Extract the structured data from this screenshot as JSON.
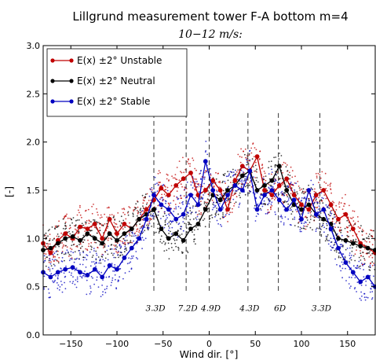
{
  "chart_data": {
    "type": "line",
    "title": "Lillgrund measurement tower F-A bottom m=4",
    "subtitle": "10−12 m/s:",
    "xlabel": "Wind dir. [°]",
    "ylabel": "[-]",
    "xlim": [
      -180,
      180
    ],
    "ylim": [
      0,
      3
    ],
    "xticks": [
      -150,
      -100,
      -50,
      0,
      50,
      100,
      150
    ],
    "yticks": [
      0.0,
      0.5,
      1.0,
      1.5,
      2.0,
      2.5,
      3.0
    ],
    "xtick_labels": [
      "−150",
      "−100",
      "−50",
      "0",
      "50",
      "100",
      "150"
    ],
    "ytick_labels": [
      "0.0",
      "0.5",
      "1.0",
      "1.5",
      "2.0",
      "2.5",
      "3.0"
    ],
    "grid": false,
    "legend_position": "top-left",
    "legend_title_prefix": "E(x) ±2°",
    "series": [
      {
        "name": "E(x) ±2° Unstable",
        "color": "#c00000",
        "x": [
          -180,
          -172,
          -164,
          -156,
          -148,
          -140,
          -132,
          -124,
          -116,
          -108,
          -100,
          -92,
          -84,
          -76,
          -68,
          -60,
          -52,
          -44,
          -36,
          -28,
          -20,
          -12,
          -4,
          4,
          12,
          20,
          28,
          36,
          44,
          52,
          60,
          68,
          76,
          84,
          92,
          100,
          108,
          116,
          124,
          132,
          140,
          148,
          156,
          164,
          172,
          180
        ],
        "y": [
          0.95,
          0.85,
          0.98,
          1.05,
          1.0,
          1.12,
          1.1,
          1.15,
          1.0,
          1.2,
          1.05,
          1.15,
          1.1,
          1.2,
          1.3,
          1.4,
          1.52,
          1.45,
          1.55,
          1.62,
          1.68,
          1.45,
          1.5,
          1.6,
          1.5,
          1.3,
          1.6,
          1.75,
          1.7,
          1.85,
          1.5,
          1.45,
          1.55,
          1.62,
          1.45,
          1.35,
          1.3,
          1.45,
          1.5,
          1.35,
          1.2,
          1.25,
          1.1,
          0.95,
          0.9,
          0.85
        ]
      },
      {
        "name": "E(x) ±2° Neutral",
        "color": "#000000",
        "x": [
          -180,
          -172,
          -164,
          -156,
          -148,
          -140,
          -132,
          -124,
          -116,
          -108,
          -100,
          -92,
          -84,
          -76,
          -68,
          -60,
          -52,
          -44,
          -36,
          -28,
          -20,
          -12,
          -4,
          4,
          12,
          20,
          28,
          36,
          44,
          52,
          60,
          68,
          76,
          84,
          92,
          100,
          108,
          116,
          124,
          132,
          140,
          148,
          156,
          164,
          172,
          180
        ],
        "y": [
          0.88,
          0.9,
          0.95,
          1.0,
          1.02,
          0.98,
          1.05,
          1.0,
          0.95,
          1.05,
          0.98,
          1.05,
          1.1,
          1.2,
          1.25,
          1.3,
          1.1,
          1.0,
          1.05,
          0.98,
          1.1,
          1.15,
          1.3,
          1.45,
          1.4,
          1.5,
          1.55,
          1.65,
          1.7,
          1.5,
          1.55,
          1.6,
          1.75,
          1.5,
          1.35,
          1.3,
          1.35,
          1.25,
          1.2,
          1.15,
          1.0,
          0.98,
          0.95,
          0.92,
          0.9,
          0.88
        ]
      },
      {
        "name": "E(x) ±2° Stable",
        "color": "#0000c0",
        "x": [
          -180,
          -172,
          -164,
          -156,
          -148,
          -140,
          -132,
          -124,
          -116,
          -108,
          -100,
          -92,
          -84,
          -76,
          -68,
          -60,
          -52,
          -44,
          -36,
          -28,
          -20,
          -12,
          -4,
          4,
          12,
          20,
          28,
          36,
          44,
          52,
          60,
          68,
          76,
          84,
          92,
          100,
          108,
          116,
          124,
          132,
          140,
          148,
          156,
          164,
          172,
          180
        ],
        "y": [
          0.65,
          0.6,
          0.65,
          0.68,
          0.7,
          0.65,
          0.62,
          0.68,
          0.6,
          0.72,
          0.68,
          0.8,
          0.9,
          1.0,
          1.2,
          1.45,
          1.35,
          1.3,
          1.2,
          1.25,
          1.45,
          1.35,
          1.8,
          1.5,
          1.3,
          1.45,
          1.55,
          1.5,
          1.7,
          1.3,
          1.45,
          1.5,
          1.4,
          1.3,
          1.4,
          1.2,
          1.5,
          1.25,
          1.3,
          1.1,
          0.9,
          0.75,
          0.65,
          0.55,
          0.6,
          0.5
        ]
      }
    ],
    "vlines": [
      {
        "x": -60,
        "label": "3.3D"
      },
      {
        "x": -25,
        "label": "7.2D"
      },
      {
        "x": 0,
        "label": "4.9D"
      },
      {
        "x": 42,
        "label": "4.3D"
      },
      {
        "x": 75,
        "label": "6D"
      },
      {
        "x": 120,
        "label": "3.3D"
      }
    ]
  }
}
